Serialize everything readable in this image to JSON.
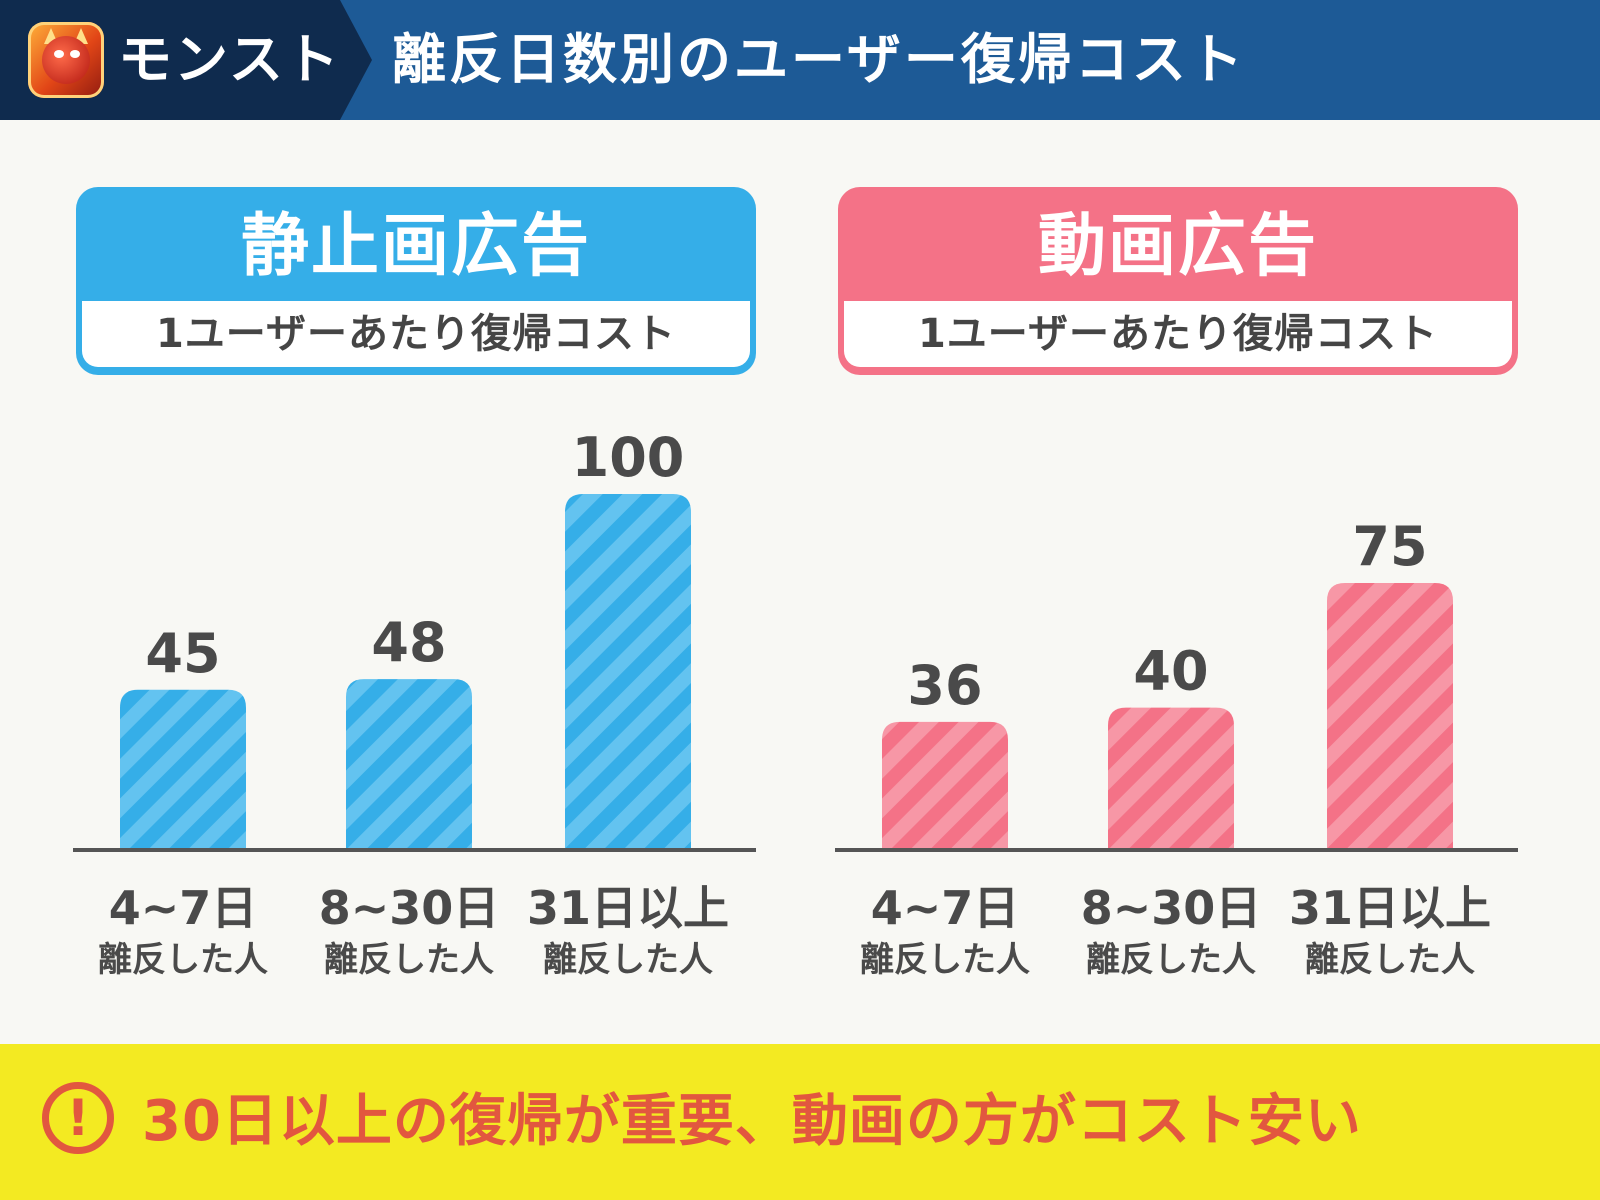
{
  "header": {
    "app_name": "モンスト",
    "title": "離反日数別のユーザー復帰コスト",
    "icon": "monster-strike-app-icon"
  },
  "panels": [
    {
      "title": "静止画広告",
      "subtitle": "1ユーザーあたり復帰コスト",
      "color": "#35aee8"
    },
    {
      "title": "動画広告",
      "subtitle": "1ユーザーあたり復帰コスト",
      "color": "#f47287"
    }
  ],
  "chart_data": [
    {
      "type": "bar",
      "title": "静止画広告",
      "categories": [
        "4~7日",
        "8~30日",
        "31日以上"
      ],
      "category_sublabels": [
        "離反した人",
        "離反した人",
        "離反した人"
      ],
      "values": [
        45,
        48,
        100
      ],
      "value_labels": [
        "45",
        "48",
        "100"
      ],
      "ylim": [
        0,
        100
      ],
      "grid": false,
      "color": "#35aee8",
      "pattern": "diagonal-stripes"
    },
    {
      "type": "bar",
      "title": "動画広告",
      "categories": [
        "4~7日",
        "8~30日",
        "31日以上"
      ],
      "category_sublabels": [
        "離反した人",
        "離反した人",
        "離反した人"
      ],
      "values": [
        36,
        40,
        75
      ],
      "value_labels": [
        "36",
        "40",
        "75"
      ],
      "ylim": [
        0,
        100
      ],
      "grid": false,
      "color": "#f47287",
      "pattern": "diagonal-stripes"
    }
  ],
  "footer": {
    "icon": "exclamation-icon",
    "message": "30日以上の復帰が重要、動画の方がコスト安い"
  }
}
